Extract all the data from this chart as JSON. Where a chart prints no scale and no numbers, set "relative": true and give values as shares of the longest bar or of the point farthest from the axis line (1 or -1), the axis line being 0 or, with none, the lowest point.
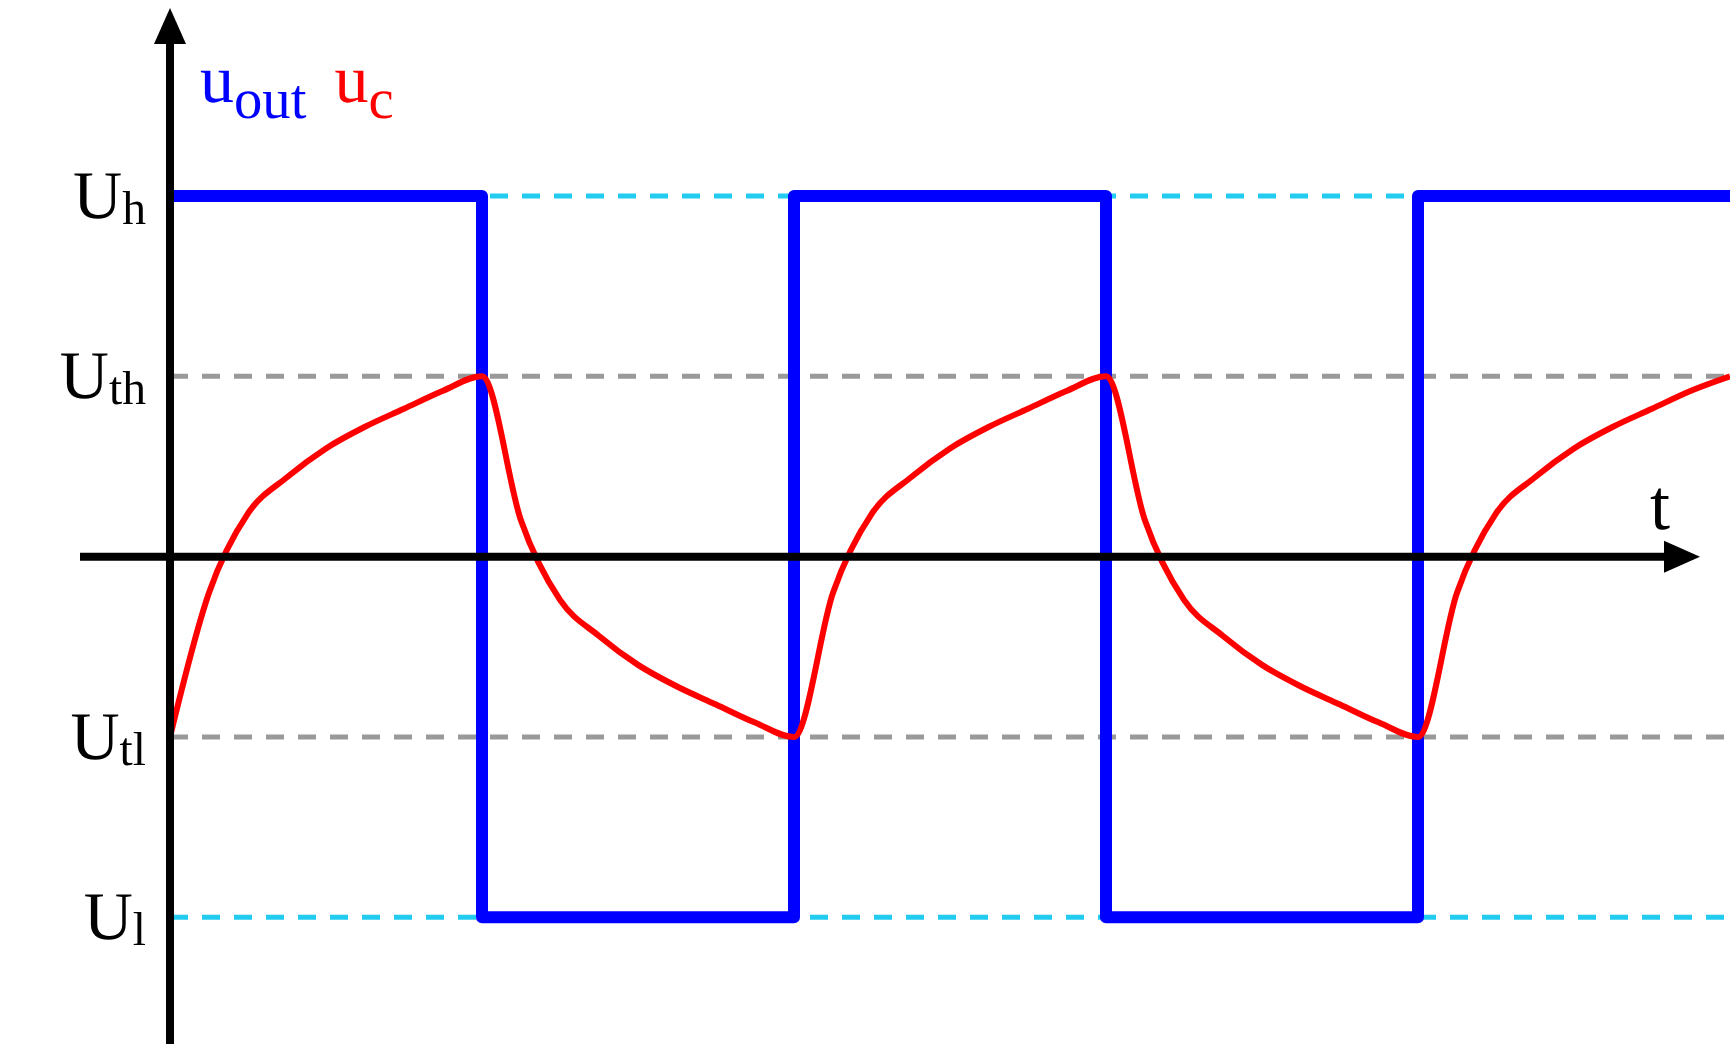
{
  "chart_data": {
    "type": "line",
    "relative": true,
    "xlabel": "t",
    "legend": "top left",
    "categories": [
      null,
      null,
      null,
      null,
      null,
      null,
      null,
      null,
      null,
      null,
      null,
      null,
      null,
      null,
      null,
      null,
      null,
      null,
      null,
      null,
      null,
      null,
      null,
      null,
      null,
      null,
      null,
      null,
      null,
      null,
      null,
      null,
      null,
      null,
      null,
      null,
      null,
      null,
      null,
      null,
      null
    ],
    "series": [
      {
        "name": "u$_{out}$",
        "type": "step",
        "color": "#0000ff",
        "values": [
          1,
          1,
          1,
          1,
          1,
          1,
          1,
          1,
          -1,
          -1,
          -1,
          -1,
          -1,
          -1,
          -1,
          -1,
          1,
          1,
          1,
          1,
          1,
          1,
          1,
          1,
          -1,
          -1,
          -1,
          -1,
          -1,
          -1,
          -1,
          -1,
          1,
          1,
          1,
          1,
          1,
          1,
          1,
          1,
          1
        ]
      },
      {
        "name": "u$_{c}$",
        "type": "line",
        "color": "#ff0000",
        "values": [
          -0.5,
          -0.1,
          0.12,
          0.22,
          0.3,
          0.36,
          0.41,
          0.46,
          0.5,
          0.1,
          -0.12,
          -0.22,
          -0.3,
          -0.36,
          -0.41,
          -0.46,
          -0.5,
          -0.1,
          0.12,
          0.22,
          0.3,
          0.36,
          0.41,
          0.46,
          0.5,
          0.1,
          -0.12,
          -0.22,
          -0.3,
          -0.36,
          -0.41,
          -0.46,
          -0.5,
          -0.1,
          0.12,
          0.22,
          0.3,
          0.36,
          0.41,
          0.46,
          0.5
        ]
      }
    ],
    "ref_lines": [
      {
        "axis": "y",
        "value": 1,
        "label": "U$_{h}$",
        "color": "#22ccf0",
        "line_style": "dashed"
      },
      {
        "axis": "y",
        "value": 0.5,
        "label": "U$_{th}$",
        "color": "#999999",
        "line_style": "dashed"
      },
      {
        "axis": "y",
        "value": -0.5,
        "label": "U$_{tl}$",
        "color": "#999999",
        "line_style": "dashed"
      },
      {
        "axis": "y",
        "value": -1,
        "label": "U$_{l}$",
        "color": "#22ccf0",
        "line_style": "dashed"
      }
    ]
  }
}
